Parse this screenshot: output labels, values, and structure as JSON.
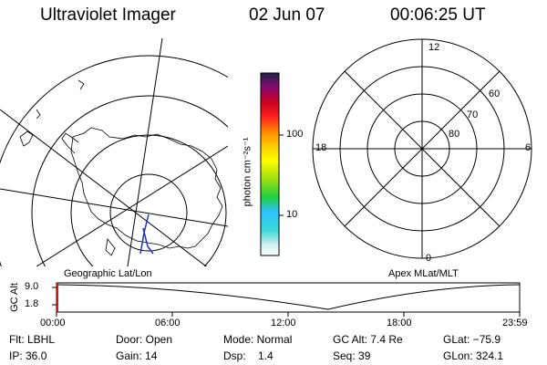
{
  "header": {
    "instrument": "Ultraviolet Imager",
    "date": "02 Jun 07",
    "time": "00:06:25 UT"
  },
  "colorbar": {
    "unit_label": "photon cm⁻²s⁻¹",
    "ticks": [
      "100",
      "10"
    ]
  },
  "polar_plot": {
    "mlt_labels": {
      "top": "12",
      "left": "18",
      "right": "6",
      "bottom": "0"
    },
    "lat_labels": [
      "60",
      "70",
      "80"
    ]
  },
  "panels": {
    "left_caption": "Geographic Lat/Lon",
    "right_caption": "Apex MLat/MLT"
  },
  "altitude_plot": {
    "ylabel": "GC Alt",
    "yticks": [
      "9.0",
      "1.8"
    ],
    "xticks": [
      "00:00",
      "06:00",
      "12:00",
      "18:00",
      "23:59"
    ]
  },
  "info": {
    "filter": "Flt: LBHL",
    "door": "Door: Open",
    "mode": "Mode: Normal",
    "gc_alt": "GC Alt: 7.4 Re",
    "glat": "GLat: −75.9",
    "ip": "IP: 36.0",
    "gain": "Gain: 14",
    "dsp": "Dsp:    1.4",
    "seq": "Seq: 39",
    "glon": "GLon: 324.1"
  }
}
